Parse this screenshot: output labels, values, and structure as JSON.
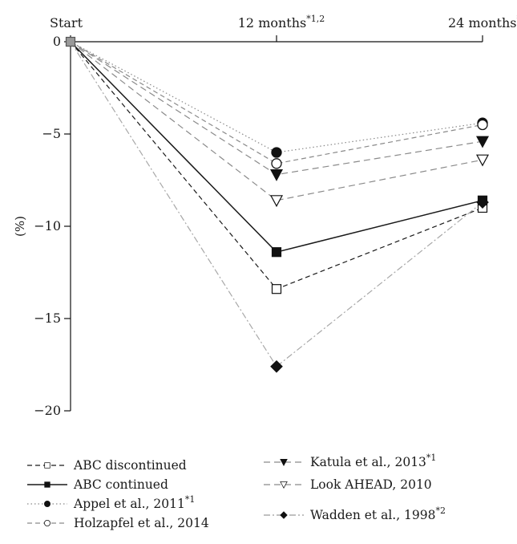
{
  "chart_data": {
    "type": "line",
    "title": "",
    "ylabel": "(%)",
    "ylim": [
      -20,
      0
    ],
    "yticks": [
      0,
      -5,
      -10,
      -15,
      -20
    ],
    "categories": [
      {
        "label": "Start",
        "sup": ""
      },
      {
        "label": "12 months",
        "sup": "*1,2"
      },
      {
        "label": "24 months",
        "sup": "*2"
      }
    ],
    "legend_position": "bottom",
    "series": [
      {
        "name": "ABC discontinued",
        "sup": "",
        "values": [
          0,
          -13.4,
          -9.0
        ],
        "color": "#1a1a1a",
        "dash": "6,4",
        "marker": "square-open"
      },
      {
        "name": "ABC continued",
        "sup": "",
        "values": [
          0,
          -11.4,
          -8.6
        ],
        "color": "#1a1a1a",
        "dash": "",
        "marker": "square-filled"
      },
      {
        "name": "Appel et al., 2011",
        "sup": "*1",
        "values": [
          0,
          -6.0,
          -4.4
        ],
        "color": "#8a8a8a",
        "dash": "1.5,3",
        "marker": "circle-filled"
      },
      {
        "name": "Holzapfel et al., 2014",
        "sup": "",
        "values": [
          0,
          -6.6,
          -4.5
        ],
        "color": "#8a8a8a",
        "dash": "6,4",
        "marker": "circle-open"
      },
      {
        "name": "Katula et al., 2013",
        "sup": "*1",
        "values": [
          0,
          -7.2,
          -5.4
        ],
        "color": "#8a8a8a",
        "dash": "8,5",
        "marker": "triangle-filled"
      },
      {
        "name": "Look AHEAD, 2010",
        "sup": "",
        "values": [
          0,
          -8.6,
          -6.4
        ],
        "color": "#8a8a8a",
        "dash": "8,5",
        "marker": "triangle-open"
      },
      {
        "name": "Wadden et al., 1998",
        "sup": "*2",
        "values": [
          0,
          -17.6,
          -8.7
        ],
        "color": "#a8a8a8",
        "dash": "8,3,2,3",
        "marker": "diamond-filled"
      }
    ]
  }
}
